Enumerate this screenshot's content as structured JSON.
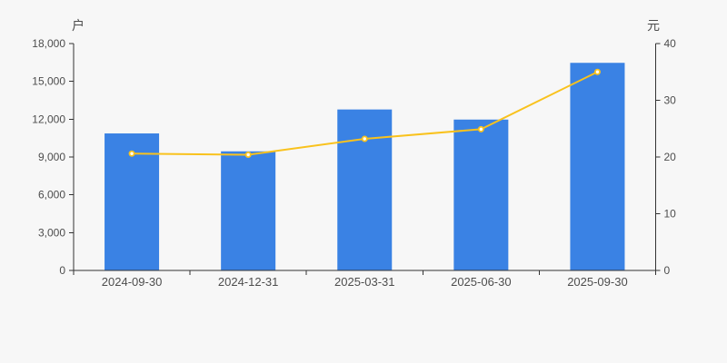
{
  "page": {
    "background": "#f7f7f7"
  },
  "chart_data": {
    "type": "bar+line",
    "title": "",
    "categories": [
      "2024-09-30",
      "2024-12-31",
      "2025-03-31",
      "2025-06-30",
      "2025-09-30"
    ],
    "series": [
      {
        "type": "bar",
        "axis": "left",
        "values": [
          10870,
          9450,
          12770,
          11970,
          16470
        ],
        "color": "#3a82e4"
      },
      {
        "type": "line",
        "axis": "right",
        "values": [
          20.6,
          20.4,
          23.2,
          24.9,
          35.0
        ],
        "color": "#f9c21d",
        "marker_fill": "#ffffff"
      }
    ],
    "left_axis": {
      "name": "户",
      "min": 0,
      "max": 18000,
      "step": 3000,
      "tick_labels": [
        "0",
        "3,000",
        "6,000",
        "9,000",
        "12,000",
        "15,000",
        "18,000"
      ]
    },
    "right_axis": {
      "name": "元",
      "min": 0,
      "max": 40,
      "step": 10,
      "tick_labels": [
        "0",
        "10",
        "20",
        "30",
        "40"
      ]
    },
    "grid": false,
    "legend": false,
    "styles": {
      "axis_color": "#333333",
      "label_color": "#4d4d4d",
      "tick_font_size": 12,
      "x_label_font_size": 13
    }
  }
}
